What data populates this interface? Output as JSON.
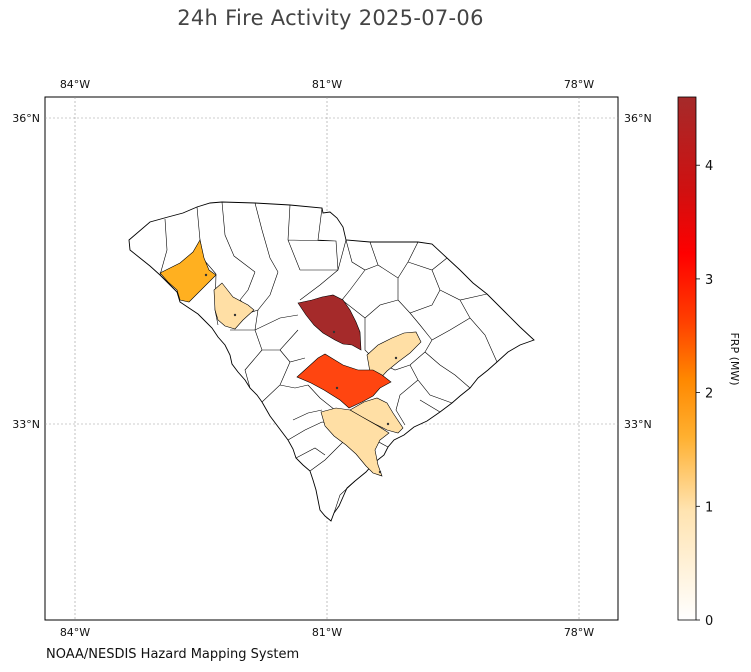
{
  "title": "24h Fire Activity 2025-07-06",
  "source": "NOAA/NESDIS Hazard Mapping System",
  "axes": {
    "lon_ticks": [
      "84°W",
      "81°W",
      "78°W"
    ],
    "lat_ticks": [
      "36°N",
      "33°N"
    ]
  },
  "colorbar": {
    "label": "FRP (MW)",
    "ticks": [
      "0",
      "1",
      "2",
      "3",
      "4"
    ],
    "range": [
      0,
      4.6
    ],
    "colors": [
      "#ffffff",
      "#ffe0a8",
      "#ffb030",
      "#ff8c00",
      "#ff4000",
      "#ff0000",
      "#a52a2a"
    ]
  },
  "map": {
    "region": "South Carolina counties",
    "grid": true,
    "fire_counties": [
      {
        "id": "oconee-area",
        "frp": 1.2,
        "color": "#ffb020"
      },
      {
        "id": "anderson-area",
        "frp": 0.3,
        "color": "#ffdfa5"
      },
      {
        "id": "lexington-area",
        "frp": 4.6,
        "color": "#a52a2a"
      },
      {
        "id": "sumter-area",
        "frp": 0.3,
        "color": "#ffdfa5"
      },
      {
        "id": "orangeburg-area",
        "frp": 2.7,
        "color": "#ff4510"
      },
      {
        "id": "dorchester-area",
        "frp": 0.4,
        "color": "#ffdfa5"
      },
      {
        "id": "colleton-area",
        "frp": 0.3,
        "color": "#ffdfa5"
      }
    ]
  }
}
